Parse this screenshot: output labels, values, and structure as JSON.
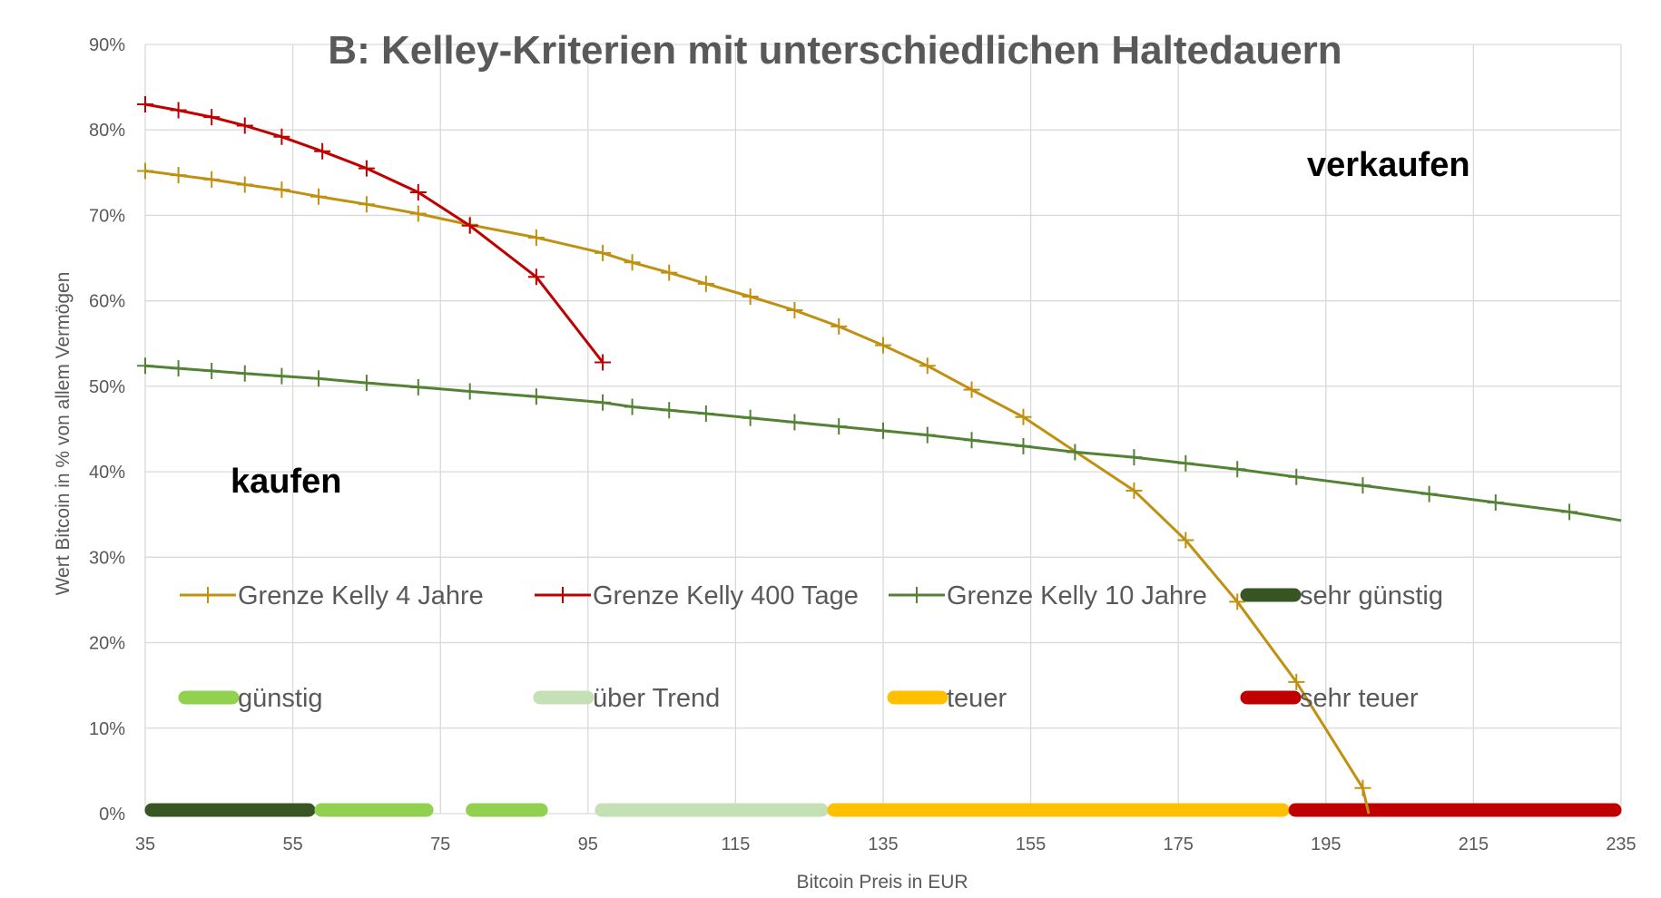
{
  "chart_data": {
    "type": "line",
    "title": "B: Kelley-Kriterien mit unterschiedlichen Haltedauern",
    "xlabel": "Bitcoin Preis in EUR",
    "ylabel": "Wert Bitcoin in % von allem Vermögen",
    "xlim": [
      35,
      235
    ],
    "ylim": [
      0,
      90
    ],
    "x_ticks": [
      "35",
      "55",
      "75",
      "95",
      "115",
      "135",
      "155",
      "175",
      "195",
      "215",
      "235"
    ],
    "y_ticks": [
      "0%",
      "10%",
      "20%",
      "30%",
      "40%",
      "50%",
      "60%",
      "70%",
      "80%",
      "90%"
    ],
    "grid": true,
    "series": [
      {
        "name": "Grenze Kelly 4 Jahre",
        "color": "#C09010",
        "points": [
          [
            35,
            75.2
          ],
          [
            39.5,
            74.7
          ],
          [
            44,
            74.2
          ],
          [
            48.5,
            73.6
          ],
          [
            53.5,
            73.0
          ],
          [
            58.5,
            72.2
          ],
          [
            65,
            71.3
          ],
          [
            72,
            70.2
          ],
          [
            79,
            68.9
          ],
          [
            88,
            67.4
          ],
          [
            97,
            65.6
          ],
          [
            101,
            64.5
          ],
          [
            106,
            63.3
          ],
          [
            111,
            62.0
          ],
          [
            117,
            60.5
          ],
          [
            123,
            58.9
          ],
          [
            129,
            57.0
          ],
          [
            135,
            54.8
          ],
          [
            141,
            52.4
          ],
          [
            147,
            49.6
          ],
          [
            154,
            46.4
          ],
          [
            169,
            37.8
          ],
          [
            176,
            32.0
          ],
          [
            183,
            24.8
          ],
          [
            191,
            15.4
          ],
          [
            200,
            3.0
          ]
        ],
        "extend_to": [
          200.8,
          0
        ]
      },
      {
        "name": "Grenze Kelly 400 Tage",
        "color": "#C00000",
        "points": [
          [
            35,
            83.0
          ],
          [
            39.5,
            82.3
          ],
          [
            44,
            81.5
          ],
          [
            48.5,
            80.5
          ],
          [
            53.5,
            79.2
          ],
          [
            59,
            77.5
          ],
          [
            65,
            75.5
          ],
          [
            72,
            72.7
          ],
          [
            79,
            68.8
          ],
          [
            88,
            62.8
          ],
          [
            97,
            52.8
          ]
        ]
      },
      {
        "name": "Grenze Kelly 10 Jahre",
        "color": "#548235",
        "points": [
          [
            35,
            52.4
          ],
          [
            39.5,
            52.1
          ],
          [
            44,
            51.8
          ],
          [
            48.5,
            51.5
          ],
          [
            53.5,
            51.2
          ],
          [
            58.5,
            50.9
          ],
          [
            65,
            50.4
          ],
          [
            72,
            49.9
          ],
          [
            79,
            49.4
          ],
          [
            88,
            48.8
          ],
          [
            97,
            48.1
          ],
          [
            101,
            47.6
          ],
          [
            106,
            47.2
          ],
          [
            111,
            46.8
          ],
          [
            117,
            46.3
          ],
          [
            123,
            45.8
          ],
          [
            129,
            45.3
          ],
          [
            135,
            44.8
          ],
          [
            141,
            44.3
          ],
          [
            147,
            43.7
          ],
          [
            154,
            43.0
          ],
          [
            161,
            42.3
          ],
          [
            169,
            41.7
          ],
          [
            176,
            41.0
          ],
          [
            183,
            40.3
          ],
          [
            191,
            39.4
          ],
          [
            200,
            38.4
          ],
          [
            209,
            37.4
          ],
          [
            218,
            36.4
          ],
          [
            228,
            35.3
          ]
        ],
        "extend_to": [
          235,
          34.3
        ]
      }
    ],
    "zones": [
      {
        "name": "sehr günstig",
        "color": "#375623",
        "from": 35,
        "to": 58
      },
      {
        "name": "günstig",
        "color": "#92D050",
        "from": 58,
        "to": 74
      },
      {
        "name": "günstig",
        "color": "#92D050",
        "from": 78.5,
        "to": 89.5
      },
      {
        "name": "über Trend",
        "color": "#C5E0B4",
        "from": 96,
        "to": 127.5
      },
      {
        "name": "teuer",
        "color": "#FFC000",
        "from": 127.5,
        "to": 190
      },
      {
        "name": "sehr teuer",
        "color": "#C00000",
        "from": 190,
        "to": 235
      }
    ],
    "annotations": [
      {
        "text": "verkaufen",
        "color": "#C00000"
      },
      {
        "text": "kaufen",
        "color": "#548235"
      }
    ],
    "legend": [
      {
        "label": "Grenze Kelly 4 Jahre",
        "kind": "line",
        "color": "#C09010"
      },
      {
        "label": "Grenze Kelly 400 Tage",
        "kind": "line",
        "color": "#C00000"
      },
      {
        "label": "Grenze Kelly 10 Jahre",
        "kind": "line",
        "color": "#548235"
      },
      {
        "label": "sehr günstig",
        "kind": "bar",
        "color": "#375623"
      },
      {
        "label": "günstig",
        "kind": "bar",
        "color": "#92D050"
      },
      {
        "label": "über Trend",
        "kind": "bar",
        "color": "#C5E0B4"
      },
      {
        "label": "teuer",
        "kind": "bar",
        "color": "#FFC000"
      },
      {
        "label": "sehr teuer",
        "kind": "bar",
        "color": "#C00000"
      }
    ]
  }
}
